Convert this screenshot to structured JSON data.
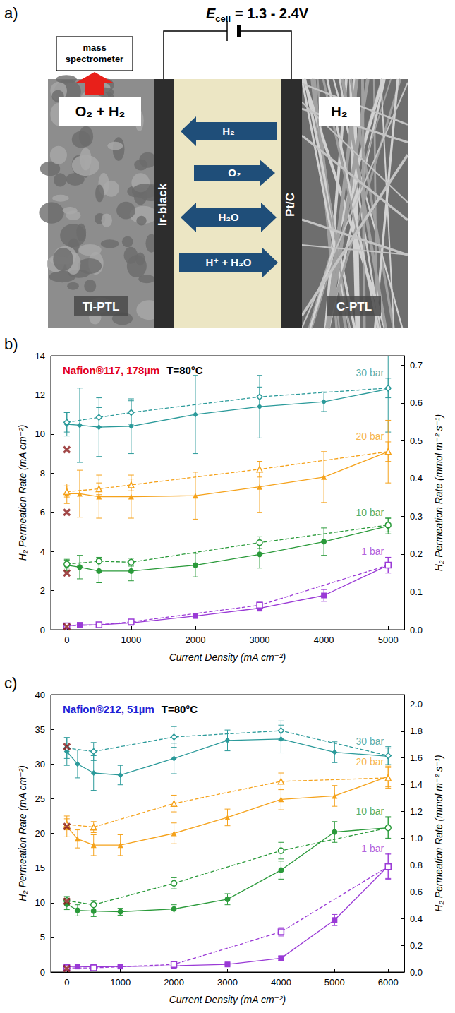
{
  "diagram": {
    "panel_label": "a)",
    "cell_voltage": {
      "symbol": "E",
      "subscript": "cell",
      "text": "= 1.3 - 2.4V"
    },
    "detector": "mass spectrometer",
    "anode": {
      "product": "O₂ + H₂",
      "catalyst": "Ir-black",
      "transport_layer": "Ti-PTL"
    },
    "cathode": {
      "product": "H₂",
      "catalyst": "Pt/C",
      "transport_layer": "C-PTL"
    },
    "membrane_fluxes": [
      {
        "label": "H₂",
        "direction": "left"
      },
      {
        "label": "O₂",
        "direction": "right"
      },
      {
        "label": "H₂O",
        "direction": "both"
      },
      {
        "label": "H⁺ + H₂O",
        "direction": "right"
      }
    ]
  },
  "chart_data": [
    {
      "type": "line",
      "panel_label": "b)",
      "title": "Nafion®117, 178µm",
      "subtitle": "T=80°C",
      "xlabel": "Current Density (mA cm⁻²)",
      "ylabel": "H₂ Permeation Rate (mA cm⁻²)",
      "y2label": "H₂ Permeation Rate (mmol m⁻² s⁻¹)",
      "xlim": [
        -250,
        5250
      ],
      "xticks": [
        0,
        1000,
        2000,
        3000,
        4000,
        5000
      ],
      "ylim": [
        0,
        14
      ],
      "yticks": [
        0,
        2,
        4,
        6,
        8,
        10,
        12,
        14
      ],
      "y2lim": [
        0,
        0.725
      ],
      "y2ticks": [
        {
          "value": 0,
          "label": "0.0"
        },
        0.1,
        0.2,
        0.3,
        0.4,
        0.5,
        0.6,
        0.7
      ],
      "grid": false,
      "series": [
        {
          "color": "#2b9a9a",
          "marker": "diamond",
          "line_style": "solid",
          "x": [
            0,
            200,
            500,
            1000,
            2000,
            3000,
            4000,
            5000
          ],
          "values": [
            10.5,
            10.45,
            10.35,
            10.4,
            11.0,
            11.4,
            11.65,
            12.3
          ],
          "errors": [
            0.6,
            1.9,
            1.5,
            1.4,
            2.0,
            1.6,
            0.5,
            2.2
          ]
        },
        {
          "name": "30 bar",
          "color": "#2b9a9a",
          "marker": "diamond-open",
          "line_style": "dashed",
          "x": [
            0,
            500,
            1000,
            3000,
            5000
          ],
          "values": [
            10.6,
            10.85,
            11.1,
            11.9,
            12.35
          ],
          "errors": [
            0.5,
            0.5,
            0.6,
            0.5,
            0.5
          ]
        },
        {
          "color": "#f5a21b",
          "marker": "triangle",
          "line_style": "solid",
          "x": [
            0,
            200,
            500,
            1000,
            2000,
            3000,
            4000,
            5000
          ],
          "values": [
            6.95,
            6.95,
            6.8,
            6.8,
            6.85,
            7.3,
            7.8,
            9.1
          ],
          "errors": [
            0.5,
            1.2,
            1.1,
            1.1,
            1.2,
            1.3,
            1.3,
            1.6
          ]
        },
        {
          "name": "20 bar",
          "color": "#f5a21b",
          "marker": "triangle-open",
          "line_style": "dashed",
          "x": [
            0,
            500,
            1000,
            3000,
            5000
          ],
          "values": [
            7.05,
            7.2,
            7.4,
            8.2,
            9.1
          ],
          "errors": [
            0.3,
            0.3,
            0.3,
            0.4,
            0.5
          ]
        },
        {
          "color": "#2a9a3a",
          "marker": "circle",
          "line_style": "solid",
          "x": [
            0,
            200,
            500,
            1000,
            2000,
            3000,
            4000,
            5000
          ],
          "values": [
            3.3,
            3.2,
            3.0,
            3.0,
            3.3,
            3.85,
            4.5,
            5.3
          ],
          "errors": [
            0.3,
            0.6,
            0.6,
            0.5,
            0.6,
            0.7,
            0.7,
            0.4
          ]
        },
        {
          "name": "10 bar",
          "color": "#2a9a3a",
          "marker": "circle-open",
          "line_style": "dashed",
          "x": [
            0,
            500,
            1000,
            3000,
            5000
          ],
          "values": [
            3.35,
            3.5,
            3.45,
            4.45,
            5.35
          ],
          "errors": [
            0.2,
            0.2,
            0.2,
            0.3,
            0.35
          ]
        },
        {
          "color": "#9a3ad6",
          "marker": "square",
          "line_style": "solid",
          "x": [
            0,
            200,
            500,
            1000,
            2000,
            3000,
            4000,
            5000
          ],
          "values": [
            0.2,
            0.25,
            0.25,
            0.35,
            0.7,
            1.1,
            1.75,
            3.3
          ],
          "errors": [
            0.05,
            0.05,
            0.05,
            0.1,
            0.1,
            0.15,
            0.3,
            0.4
          ]
        },
        {
          "name": "1 bar",
          "color": "#9a3ad6",
          "marker": "square-open",
          "line_style": "dashed",
          "x": [
            0,
            500,
            1000,
            3000,
            5000
          ],
          "values": [
            0.2,
            0.25,
            0.4,
            1.25,
            3.3
          ],
          "errors": [
            0.05,
            0.05,
            0.1,
            0.15,
            0.4
          ]
        },
        {
          "type": "scatter",
          "color": "#8b1a1a",
          "marker": "cross",
          "x": [
            0,
            0,
            0,
            0
          ],
          "values": [
            9.2,
            6.0,
            2.9,
            0.15
          ]
        }
      ]
    },
    {
      "type": "line",
      "panel_label": "c)",
      "title": "Nafion®212, 51µm",
      "subtitle": "T=80°C",
      "xlabel": "Current Density (mA cm⁻²)",
      "ylabel": "H₂ Permeation Rate (mA cm⁻²)",
      "y2label": "H₂ Permeation Rate (mmol m⁻² s⁻¹)",
      "xlim": [
        -300,
        6300
      ],
      "xticks": [
        0,
        1000,
        2000,
        3000,
        4000,
        5000,
        6000
      ],
      "ylim": [
        0,
        40
      ],
      "yticks": [
        0,
        5,
        10,
        15,
        20,
        25,
        30,
        35,
        40
      ],
      "y2lim": [
        0,
        2.073
      ],
      "y2ticks": [
        {
          "value": 0,
          "label": "0.0"
        },
        0.2,
        0.4,
        0.6,
        0.8,
        {
          "value": 1,
          "label": "1.0"
        },
        1.2,
        1.4,
        1.6,
        1.8,
        {
          "value": 2,
          "label": "2.0"
        }
      ],
      "grid": false,
      "series": [
        {
          "color": "#2b9a9a",
          "marker": "diamond",
          "line_style": "solid",
          "x": [
            0,
            200,
            500,
            1000,
            2000,
            3000,
            4000,
            5000,
            6000
          ],
          "values": [
            31.8,
            30.0,
            28.7,
            28.4,
            30.8,
            33.4,
            33.6,
            31.7,
            31.1
          ],
          "errors": [
            2.0,
            2.0,
            2.5,
            1.4,
            2.2,
            1.5,
            2.0,
            1.5,
            1.2
          ]
        },
        {
          "name": "30 bar",
          "color": "#2b9a9a",
          "marker": "diamond-open",
          "line_style": "dashed",
          "x": [
            0,
            500,
            2000,
            4000,
            6000
          ],
          "values": [
            32.3,
            31.8,
            33.9,
            34.8,
            31.2
          ],
          "errors": [
            1.5,
            1.3,
            1.5,
            1.4,
            1.3
          ]
        },
        {
          "color": "#f5a21b",
          "marker": "triangle",
          "line_style": "solid",
          "x": [
            0,
            200,
            500,
            1000,
            2000,
            3000,
            4000,
            5000,
            6000
          ],
          "values": [
            21.0,
            19.2,
            18.3,
            18.3,
            20.0,
            22.3,
            24.9,
            25.4,
            28.2
          ],
          "errors": [
            1.5,
            1.3,
            1.5,
            1.5,
            1.5,
            1.2,
            1.5,
            1.5,
            1.5
          ]
        },
        {
          "name": "20 bar",
          "color": "#f5a21b",
          "marker": "triangle-open",
          "line_style": "dashed",
          "x": [
            0,
            500,
            2000,
            4000,
            6000
          ],
          "values": [
            21.3,
            20.9,
            24.3,
            27.5,
            28.0
          ],
          "errors": [
            0.8,
            0.8,
            1.2,
            1.2,
            1.5
          ]
        },
        {
          "color": "#2a9a3a",
          "marker": "circle",
          "line_style": "solid",
          "x": [
            0,
            200,
            500,
            1000,
            2000,
            3000,
            4000,
            5000,
            6000
          ],
          "values": [
            9.8,
            8.9,
            8.8,
            8.7,
            9.1,
            10.5,
            14.7,
            20.2,
            20.8
          ],
          "errors": [
            0.8,
            0.8,
            0.8,
            0.5,
            0.6,
            0.8,
            1.3,
            1.5,
            1.5
          ]
        },
        {
          "name": "10 bar",
          "color": "#2a9a3a",
          "marker": "circle-open",
          "line_style": "dashed",
          "x": [
            0,
            500,
            2000,
            4000,
            6000
          ],
          "values": [
            10.3,
            9.7,
            12.8,
            17.5,
            20.8
          ],
          "errors": [
            0.6,
            0.6,
            0.8,
            1.2,
            1.6
          ]
        },
        {
          "color": "#9a3ad6",
          "marker": "square",
          "line_style": "solid",
          "x": [
            0,
            200,
            500,
            1000,
            2000,
            3000,
            4000,
            5000,
            6000
          ],
          "values": [
            0.8,
            0.8,
            0.75,
            0.8,
            0.9,
            1.1,
            2.0,
            7.5,
            15.3
          ],
          "errors": [
            0.2,
            0.2,
            0.2,
            0.2,
            0.2,
            0.2,
            0.3,
            0.8,
            1.8
          ]
        },
        {
          "name": "1 bar",
          "color": "#9a3ad6",
          "marker": "square-open",
          "line_style": "dashed",
          "x": [
            0,
            500,
            2000,
            4000,
            6000
          ],
          "values": [
            0.6,
            0.6,
            1.1,
            5.8,
            15.2
          ],
          "errors": [
            0.2,
            0.2,
            0.3,
            0.6,
            1.8
          ]
        },
        {
          "type": "scatter",
          "color": "#8b1a1a",
          "marker": "cross",
          "x": [
            0,
            0,
            0,
            0
          ],
          "values": [
            32.5,
            21.0,
            10.2,
            0.5
          ]
        }
      ]
    }
  ]
}
